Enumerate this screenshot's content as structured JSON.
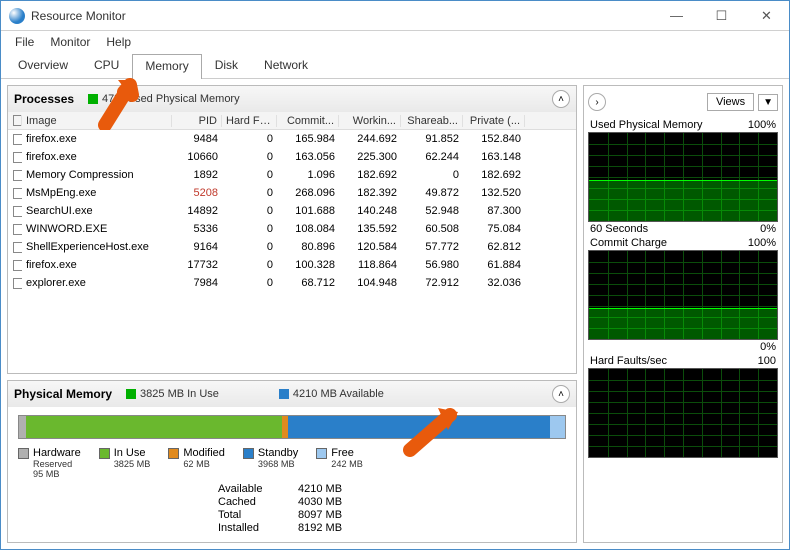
{
  "window": {
    "title": "Resource Monitor"
  },
  "menu": {
    "file": "File",
    "monitor": "Monitor",
    "help": "Help"
  },
  "tabs": {
    "overview": "Overview",
    "cpu": "CPU",
    "memory": "Memory",
    "disk": "Disk",
    "network": "Network"
  },
  "processes": {
    "title": "Processes",
    "meter_label": "47% Used Physical Memory",
    "meter_color": "#00b000",
    "columns": {
      "image": "Image",
      "pid": "PID",
      "hardf": "Hard Fa...",
      "commit": "Commit...",
      "working": "Workin...",
      "shareab": "Shareab...",
      "private": "Private (..."
    },
    "rows": [
      {
        "image": "firefox.exe",
        "pid": "9484",
        "hf": "0",
        "commit": "165.984",
        "work": "244.692",
        "share": "91.852",
        "priv": "152.840"
      },
      {
        "image": "firefox.exe",
        "pid": "10660",
        "hf": "0",
        "commit": "163.056",
        "work": "225.300",
        "share": "62.244",
        "priv": "163.148"
      },
      {
        "image": "Memory Compression",
        "pid": "1892",
        "hf": "0",
        "commit": "1.096",
        "work": "182.692",
        "share": "0",
        "priv": "182.692"
      },
      {
        "image": "MsMpEng.exe",
        "pid": "5208",
        "hf": "0",
        "commit": "268.096",
        "work": "182.392",
        "share": "49.872",
        "priv": "132.520",
        "red": true
      },
      {
        "image": "SearchUI.exe",
        "pid": "14892",
        "hf": "0",
        "commit": "101.688",
        "work": "140.248",
        "share": "52.948",
        "priv": "87.300"
      },
      {
        "image": "WINWORD.EXE",
        "pid": "5336",
        "hf": "0",
        "commit": "108.084",
        "work": "135.592",
        "share": "60.508",
        "priv": "75.084"
      },
      {
        "image": "ShellExperienceHost.exe",
        "pid": "9164",
        "hf": "0",
        "commit": "80.896",
        "work": "120.584",
        "share": "57.772",
        "priv": "62.812"
      },
      {
        "image": "firefox.exe",
        "pid": "17732",
        "hf": "0",
        "commit": "100.328",
        "work": "118.864",
        "share": "56.980",
        "priv": "61.884"
      },
      {
        "image": "explorer.exe",
        "pid": "7984",
        "hf": "0",
        "commit": "68.712",
        "work": "104.948",
        "share": "72.912",
        "priv": "32.036"
      }
    ]
  },
  "physmem": {
    "title": "Physical Memory",
    "inuse_chip_color": "#00b000",
    "inuse_label": "3825 MB In Use",
    "avail_chip_color": "#2a7fc9",
    "avail_label": "4210 MB Available",
    "bar": {
      "hardware": {
        "color": "#b0b0b0",
        "pct": 1.2
      },
      "inuse": {
        "color": "#6ab82e",
        "pct": 47
      },
      "modified": {
        "color": "#e08a1e",
        "pct": 1
      },
      "standby": {
        "color": "#2a7fc9",
        "pct": 48
      },
      "free": {
        "color": "#9dc8ef",
        "pct": 2.8
      }
    },
    "legend": {
      "hardware": {
        "label": "Hardware",
        "sub": "Reserved",
        "val": "95 MB",
        "color": "#b0b0b0"
      },
      "inuse": {
        "label": "In Use",
        "sub": "3825 MB",
        "val": "",
        "color": "#6ab82e"
      },
      "modified": {
        "label": "Modified",
        "sub": "62 MB",
        "val": "",
        "color": "#e08a1e"
      },
      "standby": {
        "label": "Standby",
        "sub": "3968 MB",
        "val": "",
        "color": "#2a7fc9"
      },
      "free": {
        "label": "Free",
        "sub": "242 MB",
        "val": "",
        "color": "#9dc8ef"
      }
    },
    "summary": {
      "available_l": "Available",
      "available_v": "4210 MB",
      "cached_l": "Cached",
      "cached_v": "4030 MB",
      "total_l": "Total",
      "total_v": "8097 MB",
      "installed_l": "Installed",
      "installed_v": "8192 MB"
    }
  },
  "right": {
    "views": "Views",
    "charts": [
      {
        "title": "Used Physical Memory",
        "max": "100%",
        "footer_l": "60 Seconds",
        "footer_r": "0%",
        "fill_pct": 47
      },
      {
        "title": "Commit Charge",
        "max": "100%",
        "footer_l": "",
        "footer_r": "0%",
        "fill_pct": 35
      },
      {
        "title": "Hard Faults/sec",
        "max": "100",
        "footer_l": "",
        "footer_r": "",
        "fill_pct": 0
      }
    ]
  },
  "style": {
    "grid_color": "#0b4d0b",
    "trace_color": "#00ff00",
    "arrow_color": "#e85a0c"
  }
}
